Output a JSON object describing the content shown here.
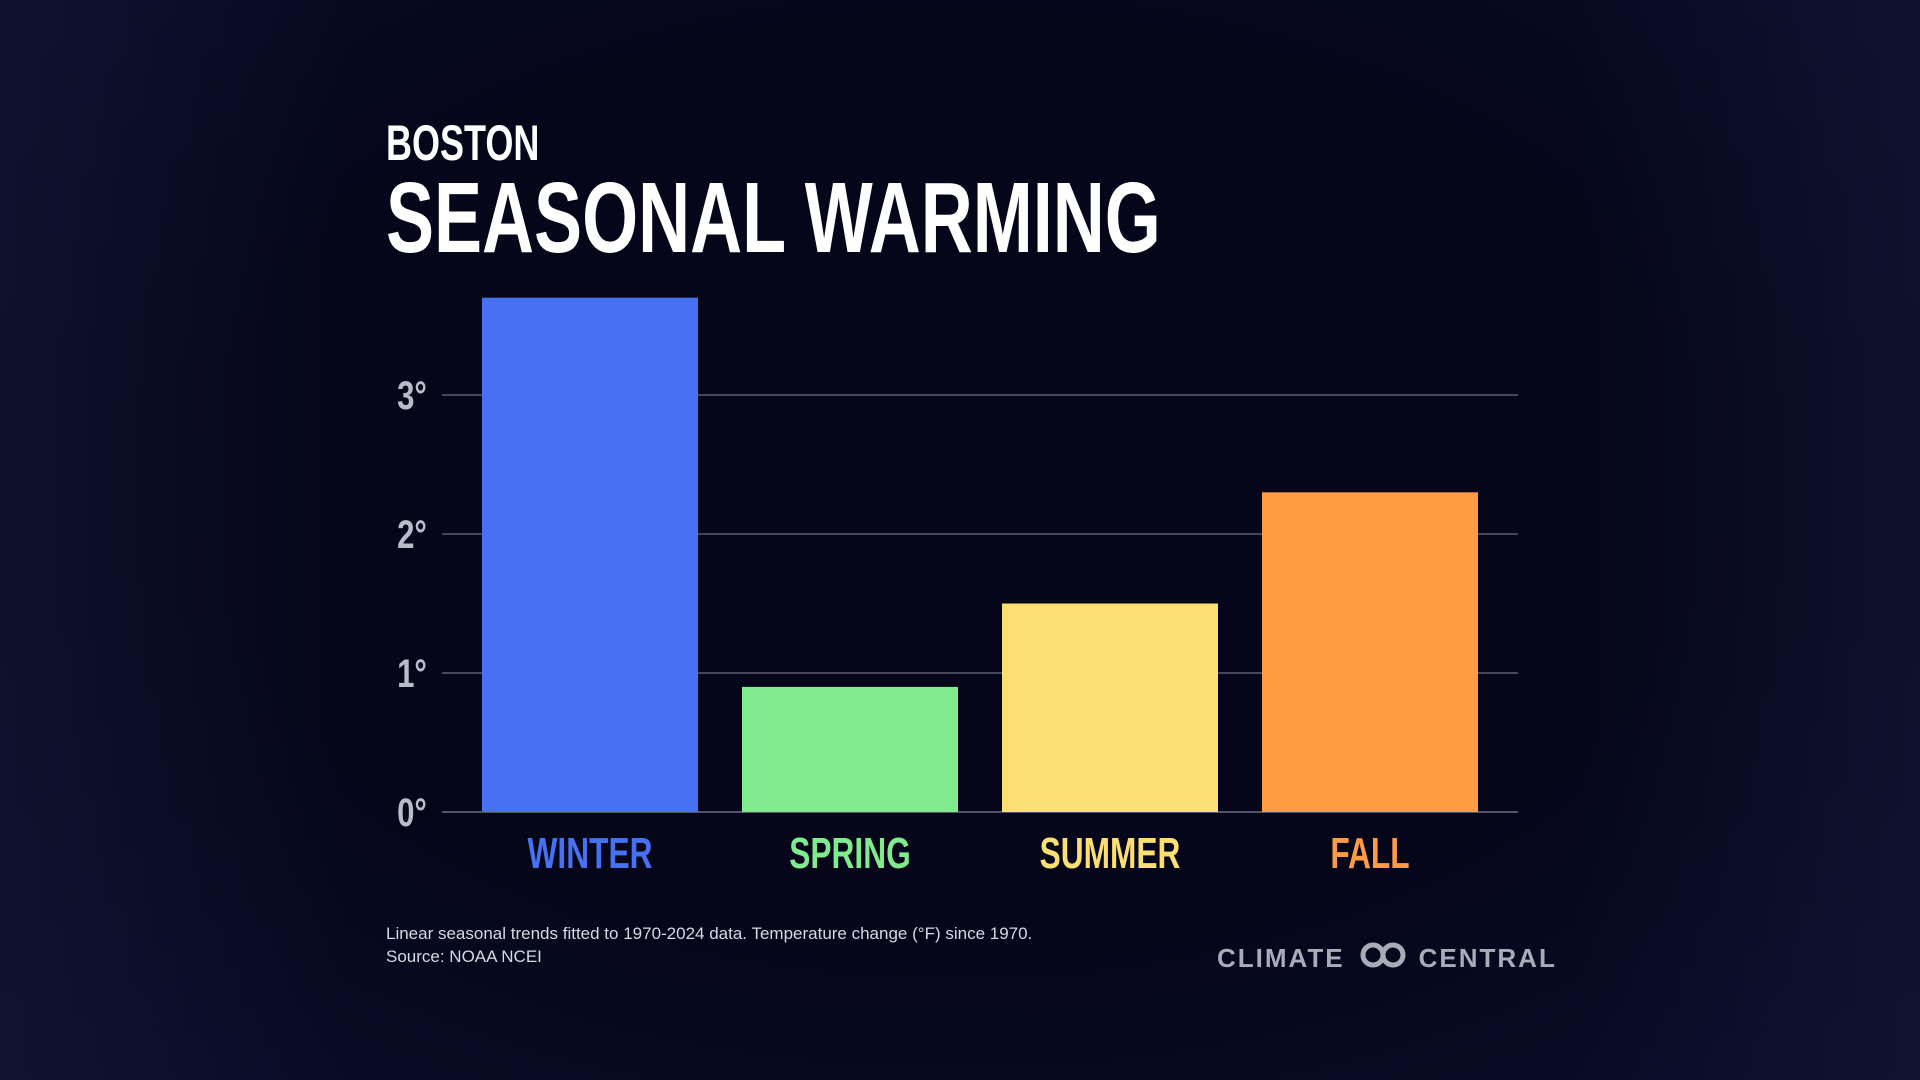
{
  "header": {
    "subtitle": "BOSTON",
    "title": "SEASONAL WARMING"
  },
  "footer": {
    "note_line1": "Linear seasonal trends fitted to 1970-2024 data. Temperature change (°F) since 1970.",
    "note_line2": "Source: NOAA NCEI"
  },
  "logo": {
    "left_text": "CLIMATE",
    "right_text": "CENTRAL",
    "icon": "linked-rings-icon"
  },
  "colors": {
    "background": "#05061a",
    "winter": "#4571f2",
    "spring": "#7feb8e",
    "summer": "#fbdf72",
    "fall": "#ff9b42",
    "grid": "#6b6e80",
    "tick": "#b9bcc9"
  },
  "chart_data": {
    "type": "bar",
    "title": "SEASONAL WARMING",
    "subtitle": "BOSTON",
    "categories": [
      "WINTER",
      "SPRING",
      "SUMMER",
      "FALL"
    ],
    "values": [
      3.7,
      0.9,
      1.5,
      2.3
    ],
    "unit": "°F",
    "ylim": [
      0,
      3.7
    ],
    "yticks": [
      0,
      1,
      2,
      3
    ],
    "ytick_labels": [
      "0°",
      "1°",
      "2°",
      "3°"
    ],
    "xlabel": "",
    "ylabel": "",
    "grid": true,
    "legend": "none"
  }
}
